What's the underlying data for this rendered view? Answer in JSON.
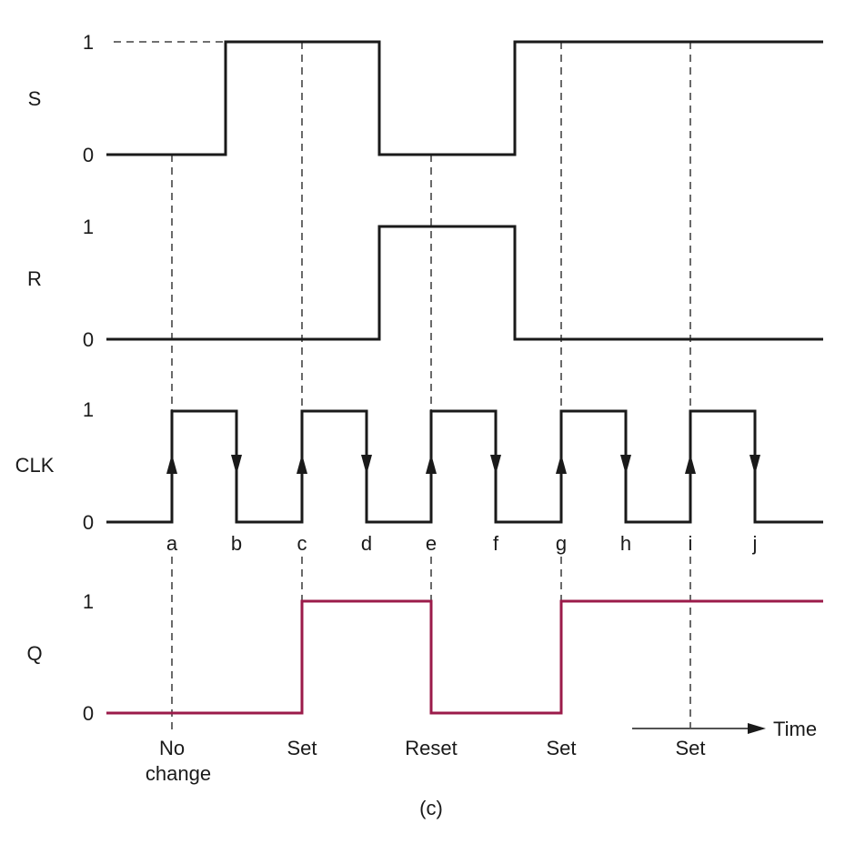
{
  "signals": [
    {
      "name": "S",
      "high": "1",
      "low": "0",
      "transitions": [
        0,
        1,
        0,
        1
      ]
    },
    {
      "name": "R",
      "high": "1",
      "low": "0",
      "transitions": [
        0,
        1,
        0
      ]
    },
    {
      "name": "CLK",
      "high": "1",
      "low": "0"
    },
    {
      "name": "Q",
      "high": "1",
      "low": "0",
      "transitions": [
        0,
        1,
        0,
        1
      ]
    }
  ],
  "clock_edges": [
    "a",
    "b",
    "c",
    "d",
    "e",
    "f",
    "g",
    "h",
    "i",
    "j"
  ],
  "events": [
    "No",
    "change",
    "Set",
    "Reset",
    "Set",
    "Set"
  ],
  "time_label": "Time",
  "caption": "(c)",
  "colors": {
    "signal": "#1a1a1a",
    "q_signal": "#9b1b4a"
  }
}
